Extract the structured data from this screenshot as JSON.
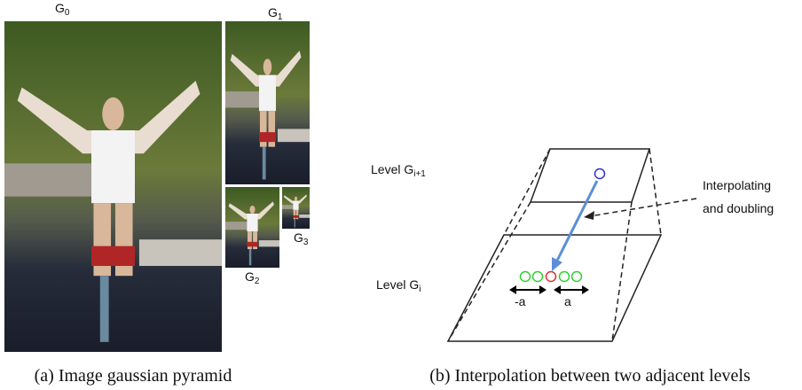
{
  "panel_a": {
    "labels": [
      {
        "base": "G",
        "sub": "0"
      },
      {
        "base": "G",
        "sub": "1"
      },
      {
        "base": "G",
        "sub": "2"
      },
      {
        "base": "G",
        "sub": "3"
      }
    ],
    "caption": "(a) Image gaussian pyramid"
  },
  "panel_b": {
    "level_upper": {
      "base": "Level G",
      "sub": "i+1"
    },
    "level_lower": {
      "base": "Level G",
      "sub": "i"
    },
    "annotation": [
      "Interpolating",
      "and doubling"
    ],
    "offset_left": "-a",
    "offset_right": "a",
    "caption": "(b) Interpolation between two adjacent levels"
  }
}
